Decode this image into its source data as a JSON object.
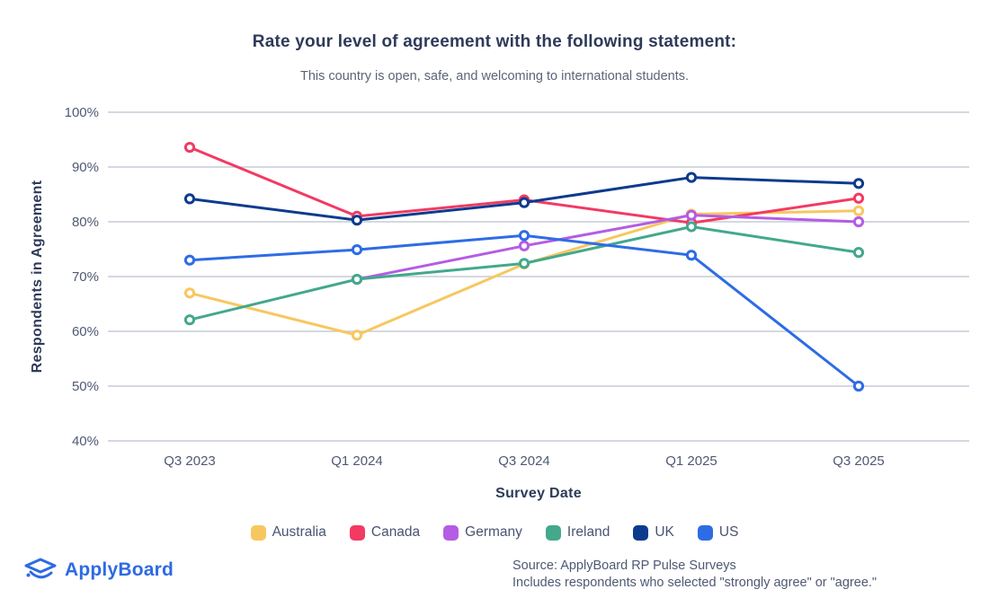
{
  "header": {
    "title": "Rate your level of agreement with the following statement:",
    "subtitle": "This country is open, safe, and welcoming to international students."
  },
  "chart_data": {
    "type": "line",
    "categories": [
      "Q3 2023",
      "Q1 2024",
      "Q3 2024",
      "Q1 2025",
      "Q3 2025"
    ],
    "series": [
      {
        "name": "Australia",
        "color": "#F7C75F",
        "values": [
          67,
          59.3,
          72.3,
          81.4,
          82
        ]
      },
      {
        "name": "Canada",
        "color": "#F23A63",
        "values": [
          93.6,
          81,
          84,
          79.8,
          84.3
        ]
      },
      {
        "name": "Germany",
        "color": "#B45CE4",
        "values": [
          null,
          69.5,
          75.6,
          81.2,
          80
        ]
      },
      {
        "name": "Ireland",
        "color": "#43A88C",
        "values": [
          62.1,
          69.5,
          72.4,
          79.1,
          74.4
        ]
      },
      {
        "name": "UK",
        "color": "#0C3B8D",
        "values": [
          84.2,
          80.3,
          83.5,
          88.1,
          87
        ]
      },
      {
        "name": "US",
        "color": "#2E6CE4",
        "values": [
          73,
          74.9,
          77.5,
          73.9,
          50
        ]
      }
    ],
    "title": "Rate your level of agreement with the following statement:",
    "subtitle": "This country is open, safe, and welcoming to international students.",
    "xlabel": "Survey Date",
    "ylabel": "Respondents in Agreement",
    "ylim": [
      40,
      100
    ],
    "ytick_step": 10,
    "ytick_suffix": "%",
    "grid": "horizontal",
    "legend_position": "bottom"
  },
  "footer": {
    "logo_text": "ApplyBoard",
    "source_line1": "Source: ApplyBoard RP Pulse Surveys",
    "source_line2": "Includes respondents who selected \"strongly agree\" or \"agree.\""
  },
  "colors": {
    "grid": "#c6cbd9",
    "tick_label": "#4f5974",
    "logo_blue": "#2d6ae3"
  }
}
